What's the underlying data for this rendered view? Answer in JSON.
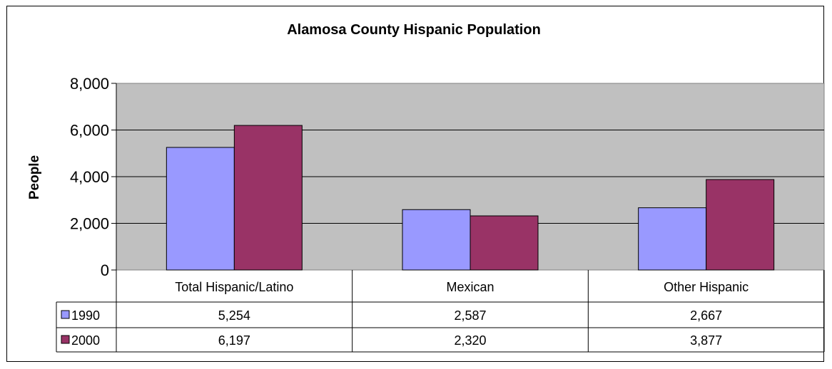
{
  "chart_data": {
    "type": "bar",
    "title": "Alamosa County Hispanic Population",
    "xlabel": "",
    "ylabel": "People",
    "ylim": [
      0,
      8000
    ],
    "yticks": [
      0,
      2000,
      4000,
      6000,
      8000
    ],
    "ytick_labels": [
      "0",
      "2,000",
      "4,000",
      "6,000",
      "8,000"
    ],
    "grid": true,
    "legend": "data-table",
    "categories": [
      "Total Hispanic/Latino",
      "Mexican",
      "Other Hispanic"
    ],
    "series": [
      {
        "name": "1990",
        "color": "#9999ff",
        "values": [
          5254,
          2587,
          2667
        ],
        "labels": [
          "5,254",
          "2,587",
          "2,667"
        ]
      },
      {
        "name": "2000",
        "color": "#993366",
        "values": [
          6197,
          2320,
          3877
        ],
        "labels": [
          "6,197",
          "2,320",
          "3,877"
        ]
      }
    ],
    "plot_background": "#c0c0c0"
  }
}
